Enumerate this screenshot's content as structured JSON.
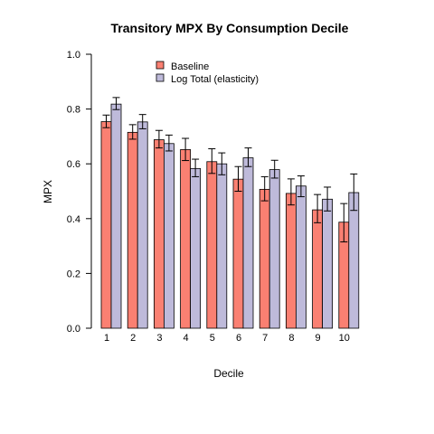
{
  "chart_data": {
    "type": "bar",
    "title": "Transitory MPX By Consumption Decile",
    "xlabel": "Decile",
    "ylabel": "MPX",
    "ylim": [
      0,
      1
    ],
    "yticks": [
      "0.0",
      "0.2",
      "0.4",
      "0.6",
      "0.8",
      "1.0"
    ],
    "categories": [
      "1",
      "2",
      "3",
      "4",
      "5",
      "6",
      "7",
      "8",
      "9",
      "10"
    ],
    "legend_position": "top",
    "grid": false,
    "series": [
      {
        "name": "Baseline",
        "color": "#fa8072",
        "values": [
          0.754,
          0.715,
          0.688,
          0.652,
          0.608,
          0.544,
          0.507,
          0.492,
          0.432,
          0.387
        ],
        "err_low": [
          0.732,
          0.69,
          0.658,
          0.612,
          0.565,
          0.5,
          0.465,
          0.45,
          0.385,
          0.315
        ],
        "err_high": [
          0.778,
          0.743,
          0.722,
          0.693,
          0.655,
          0.59,
          0.553,
          0.545,
          0.488,
          0.455
        ]
      },
      {
        "name": "Log Total (elasticity)",
        "color": "#bebada",
        "values": [
          0.818,
          0.753,
          0.674,
          0.583,
          0.6,
          0.622,
          0.579,
          0.519,
          0.471,
          0.495
        ],
        "err_low": [
          0.798,
          0.728,
          0.647,
          0.553,
          0.56,
          0.59,
          0.548,
          0.48,
          0.428,
          0.43
        ],
        "err_high": [
          0.842,
          0.78,
          0.705,
          0.617,
          0.64,
          0.658,
          0.613,
          0.556,
          0.515,
          0.563
        ]
      }
    ]
  }
}
